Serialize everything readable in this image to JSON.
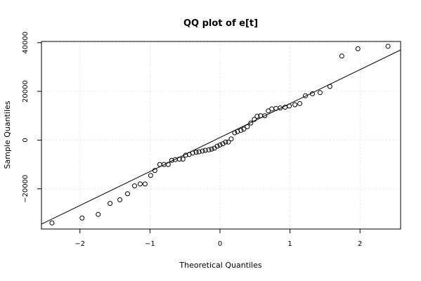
{
  "chart_data": {
    "type": "scatter",
    "title": "QQ plot of e[t]",
    "xlabel": "Theoretical Quantiles",
    "ylabel": "Sample Quantiles",
    "xlim": [
      -2.55,
      2.58
    ],
    "ylim": [
      -36500,
      40500
    ],
    "x_ticks": [
      -2,
      -1,
      0,
      1,
      2
    ],
    "x_tick_labels": [
      "−2",
      "−1",
      "0",
      "1",
      "2"
    ],
    "y_ticks": [
      -20000,
      0,
      20000,
      40000
    ],
    "y_tick_labels": [
      "−20000",
      "0",
      "20000",
      "40000"
    ],
    "grid": true,
    "points": [
      {
        "x": -2.4,
        "y": -34000
      },
      {
        "x": -1.97,
        "y": -32000
      },
      {
        "x": -1.74,
        "y": -30500
      },
      {
        "x": -1.57,
        "y": -26000
      },
      {
        "x": -1.43,
        "y": -24500
      },
      {
        "x": -1.32,
        "y": -22000
      },
      {
        "x": -1.22,
        "y": -18800
      },
      {
        "x": -1.14,
        "y": -18000
      },
      {
        "x": -1.07,
        "y": -18000
      },
      {
        "x": -0.99,
        "y": -14500
      },
      {
        "x": -0.93,
        "y": -12500
      },
      {
        "x": -0.86,
        "y": -10000
      },
      {
        "x": -0.8,
        "y": -10000
      },
      {
        "x": -0.74,
        "y": -10000
      },
      {
        "x": -0.69,
        "y": -8300
      },
      {
        "x": -0.64,
        "y": -8000
      },
      {
        "x": -0.58,
        "y": -7800
      },
      {
        "x": -0.53,
        "y": -7800
      },
      {
        "x": -0.49,
        "y": -6200
      },
      {
        "x": -0.44,
        "y": -5900
      },
      {
        "x": -0.39,
        "y": -5300
      },
      {
        "x": -0.34,
        "y": -5000
      },
      {
        "x": -0.3,
        "y": -4800
      },
      {
        "x": -0.25,
        "y": -4500
      },
      {
        "x": -0.21,
        "y": -4200
      },
      {
        "x": -0.16,
        "y": -4000
      },
      {
        "x": -0.12,
        "y": -3700
      },
      {
        "x": -0.08,
        "y": -3300
      },
      {
        "x": -0.04,
        "y": -2500
      },
      {
        "x": 0.0,
        "y": -2000
      },
      {
        "x": 0.04,
        "y": -1500
      },
      {
        "x": 0.08,
        "y": -800
      },
      {
        "x": 0.12,
        "y": -800
      },
      {
        "x": 0.16,
        "y": 500
      },
      {
        "x": 0.21,
        "y": 3000
      },
      {
        "x": 0.25,
        "y": 3500
      },
      {
        "x": 0.3,
        "y": 4000
      },
      {
        "x": 0.34,
        "y": 4500
      },
      {
        "x": 0.39,
        "y": 5500
      },
      {
        "x": 0.44,
        "y": 7000
      },
      {
        "x": 0.49,
        "y": 8500
      },
      {
        "x": 0.53,
        "y": 9800
      },
      {
        "x": 0.58,
        "y": 10000
      },
      {
        "x": 0.64,
        "y": 10000
      },
      {
        "x": 0.69,
        "y": 12000
      },
      {
        "x": 0.74,
        "y": 12800
      },
      {
        "x": 0.8,
        "y": 13000
      },
      {
        "x": 0.86,
        "y": 13200
      },
      {
        "x": 0.93,
        "y": 13500
      },
      {
        "x": 0.99,
        "y": 14000
      },
      {
        "x": 1.07,
        "y": 14500
      },
      {
        "x": 1.14,
        "y": 15000
      },
      {
        "x": 1.22,
        "y": 18200
      },
      {
        "x": 1.32,
        "y": 19000
      },
      {
        "x": 1.43,
        "y": 19500
      },
      {
        "x": 1.57,
        "y": 22000
      },
      {
        "x": 1.74,
        "y": 34500
      },
      {
        "x": 1.97,
        "y": 37500
      },
      {
        "x": 2.4,
        "y": 38500
      }
    ],
    "reference_line": {
      "x1": -2.55,
      "y1": -34500,
      "x2": 2.58,
      "y2": 37000
    }
  }
}
